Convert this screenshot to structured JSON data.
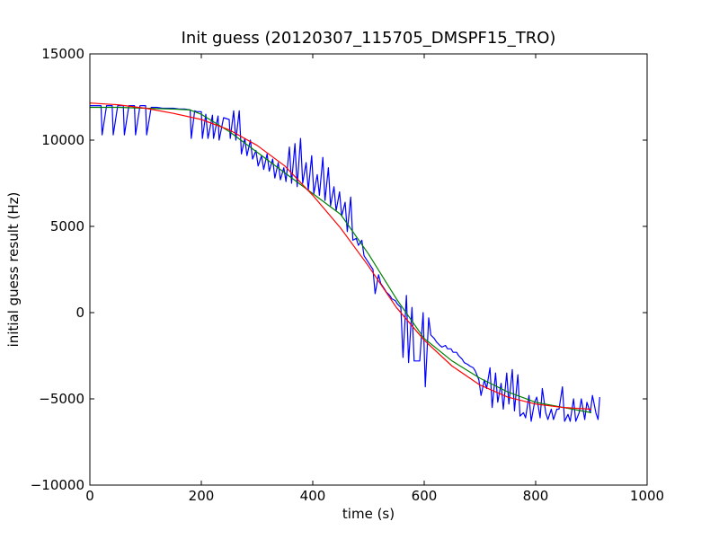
{
  "chart_data": {
    "type": "line",
    "title": "Init guess (20120307_115705_DMSPF15_TRO)",
    "xlabel": "time (s)",
    "ylabel": "initial guess result (Hz)",
    "xlim": [
      0,
      1000
    ],
    "ylim": [
      -10000,
      15000
    ],
    "xticks": [
      0,
      200,
      400,
      600,
      800,
      1000
    ],
    "yticks": [
      -10000,
      -5000,
      0,
      5000,
      10000,
      15000
    ],
    "xtick_labels": [
      "0",
      "200",
      "400",
      "600",
      "800",
      "1000"
    ],
    "ytick_labels": [
      "−10000",
      "−5000",
      "0",
      "5000",
      "10000",
      "15000"
    ],
    "grid": false,
    "legend": "none",
    "series": [
      {
        "color": "#0000ff",
        "x": [
          0,
          10,
          20,
          22,
          30,
          40,
          42,
          50,
          60,
          62,
          70,
          80,
          82,
          90,
          100,
          102,
          110,
          120,
          130,
          140,
          150,
          160,
          170,
          180,
          182,
          188,
          192,
          200,
          202,
          208,
          212,
          220,
          222,
          230,
          232,
          240,
          250,
          252,
          258,
          262,
          268,
          272,
          278,
          282,
          288,
          292,
          298,
          302,
          308,
          312,
          318,
          322,
          328,
          332,
          338,
          342,
          348,
          352,
          358,
          362,
          368,
          372,
          378,
          382,
          388,
          392,
          398,
          402,
          408,
          412,
          418,
          422,
          428,
          432,
          438,
          442,
          448,
          452,
          458,
          462,
          468,
          472,
          478,
          482,
          488,
          492,
          498,
          502,
          508,
          512,
          518,
          522,
          528,
          532,
          538,
          542,
          548,
          552,
          558,
          562,
          568,
          572,
          578,
          582,
          588,
          592,
          598,
          602,
          608,
          612,
          618,
          622,
          628,
          632,
          638,
          642,
          648,
          652,
          658,
          662,
          668,
          672,
          678,
          682,
          688,
          692,
          698,
          702,
          708,
          712,
          718,
          722,
          728,
          732,
          738,
          742,
          748,
          752,
          758,
          762,
          768,
          772,
          778,
          782,
          788,
          792,
          798,
          802,
          808,
          812,
          818,
          822,
          828,
          832,
          838,
          842,
          848,
          852,
          858,
          862,
          868,
          872,
          878,
          882,
          888,
          892,
          898,
          902,
          908,
          912,
          915
        ],
        "y": [
          12000,
          12000,
          12000,
          10300,
          12000,
          12000,
          10300,
          12000,
          12000,
          10300,
          12000,
          12000,
          10300,
          12000,
          12000,
          10300,
          11900,
          11900,
          11850,
          11850,
          11850,
          11800,
          11800,
          11750,
          10100,
          11700,
          11650,
          11650,
          10100,
          11500,
          10100,
          11450,
          10100,
          11400,
          10000,
          11300,
          11200,
          10100,
          11700,
          10000,
          11700,
          9200,
          10100,
          9100,
          10000,
          8900,
          9400,
          8500,
          9100,
          8300,
          9200,
          8200,
          8900,
          7800,
          8700,
          7700,
          8400,
          7600,
          9600,
          7500,
          9800,
          7300,
          10100,
          7500,
          8700,
          7100,
          9100,
          6900,
          8000,
          6800,
          9000,
          6500,
          8400,
          6200,
          7300,
          5900,
          7000,
          5600,
          6400,
          4700,
          6700,
          4200,
          4300,
          3900,
          4200,
          3300,
          3000,
          2800,
          2500,
          1100,
          2200,
          1700,
          1400,
          1200,
          1000,
          800,
          700,
          500,
          300,
          -2600,
          1000,
          -2900,
          300,
          -2800,
          -2800,
          -2800,
          0,
          -4300,
          -300,
          -1300,
          -1500,
          -1700,
          -1900,
          -2000,
          -1900,
          -2100,
          -2100,
          -2300,
          -2300,
          -2500,
          -2700,
          -2900,
          -3000,
          -3100,
          -3200,
          -3400,
          -3900,
          -4800,
          -3900,
          -4400,
          -3200,
          -5500,
          -3500,
          -5200,
          -4100,
          -5600,
          -3500,
          -5300,
          -3300,
          -5700,
          -3600,
          -6000,
          -5800,
          -6100,
          -4800,
          -6300,
          -5200,
          -4900,
          -6100,
          -4400,
          -5800,
          -6200,
          -5600,
          -6200,
          -5600,
          -5600,
          -4300,
          -6300,
          -5900,
          -6300,
          -5000,
          -6300,
          -5800,
          -5000,
          -6200,
          -5200,
          -5800,
          -4800,
          -5800,
          -6200,
          -4900
        ]
      },
      {
        "color": "#008000",
        "x": [
          0,
          50,
          100,
          150,
          180,
          200,
          250,
          300,
          350,
          400,
          450,
          500,
          550,
          600,
          650,
          700,
          750,
          800,
          850,
          900
        ],
        "y": [
          11900,
          11900,
          11850,
          11800,
          11750,
          11500,
          10500,
          9300,
          8100,
          6900,
          5700,
          3400,
          800,
          -1500,
          -2800,
          -3800,
          -4600,
          -5200,
          -5500,
          -5800
        ]
      },
      {
        "color": "#ff0000",
        "x": [
          0,
          50,
          100,
          150,
          200,
          250,
          300,
          350,
          400,
          450,
          500,
          550,
          600,
          650,
          700,
          750,
          800,
          850,
          900
        ],
        "y": [
          12150,
          12050,
          11850,
          11550,
          11200,
          10600,
          9700,
          8500,
          6800,
          4900,
          2700,
          300,
          -1600,
          -3100,
          -4200,
          -4900,
          -5300,
          -5500,
          -5600
        ]
      }
    ]
  }
}
